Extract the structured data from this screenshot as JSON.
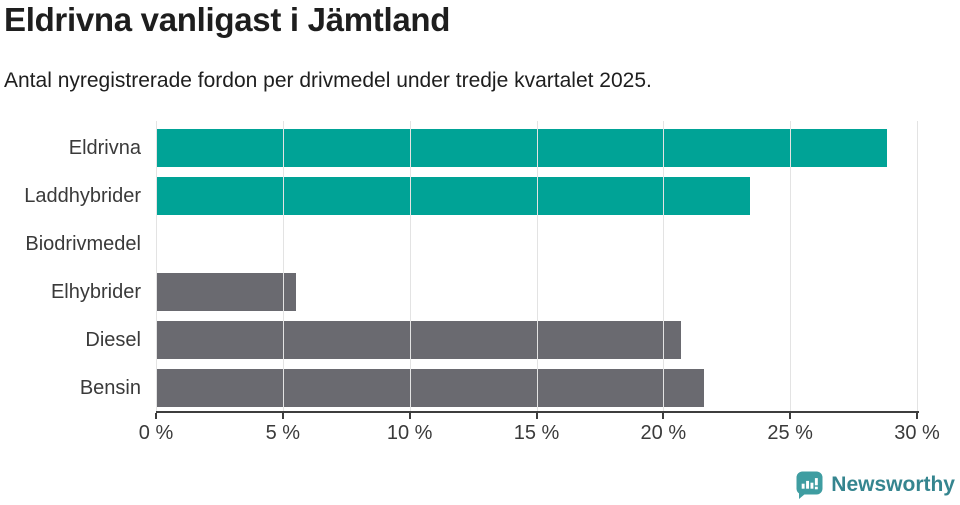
{
  "chart_data": {
    "type": "bar",
    "orientation": "horizontal",
    "title": "Eldrivna vanligast i Jämtland",
    "subtitle": "Antal nyregistrerade fordon per drivmedel under tredje kvartalet 2025.",
    "categories": [
      "Eldrivna",
      "Laddhybrider",
      "Biodrivmedel",
      "Elhybrider",
      "Diesel",
      "Bensin"
    ],
    "values": [
      28.8,
      23.4,
      0,
      5.5,
      20.7,
      21.6
    ],
    "unit": "%",
    "xlim": [
      0,
      30
    ],
    "x_ticks": [
      "0 %",
      "5 %",
      "10 %",
      "15 %",
      "20 %",
      "25 %",
      "30 %"
    ],
    "grid": true,
    "legend": "none",
    "bar_colors": [
      "#00a396",
      "#00a396",
      "#00a396",
      "#6a6a70",
      "#6a6a70",
      "#6a6a70"
    ]
  },
  "colors": {
    "highlight": "#00a396",
    "muted": "#6a6a70",
    "axis": "#3d3d3d",
    "gridline": "#e3e3e3",
    "label_text": "#3a3a3a",
    "heading_text": "#1e1e1e",
    "brand_text": "#35858f",
    "brand_icon": "#3f9da1"
  },
  "footer": {
    "brand": "Newsworthy"
  }
}
